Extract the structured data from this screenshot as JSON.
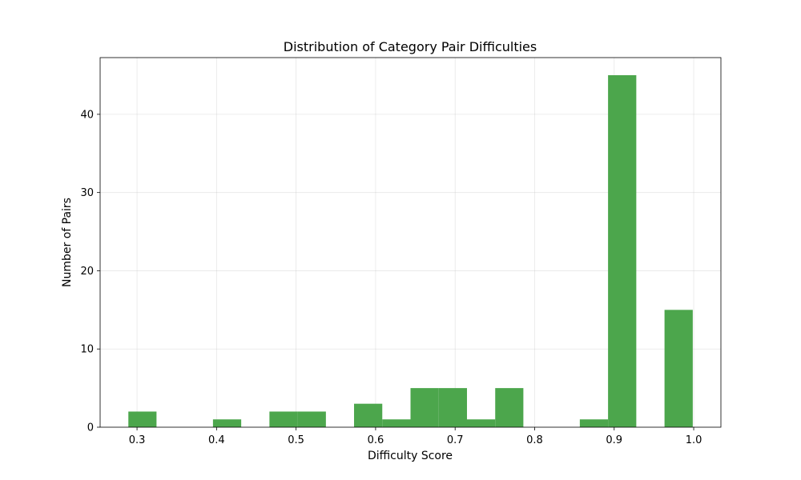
{
  "chart_data": {
    "type": "bar",
    "title": "Distribution of Category Pair Difficulties",
    "xlabel": "Difficulty Score",
    "ylabel": "Number of Pairs",
    "bin_edges": [
      0.2891,
      0.3245,
      0.36,
      0.3955,
      0.431,
      0.4665,
      0.502,
      0.5375,
      0.5729,
      0.6084,
      0.6439,
      0.6794,
      0.7149,
      0.7504,
      0.7858,
      0.8213,
      0.8568,
      0.8923,
      0.9278,
      0.9633,
      0.9988
    ],
    "values": [
      2,
      0,
      0,
      1,
      0,
      2,
      2,
      0,
      3,
      1,
      5,
      5,
      1,
      5,
      0,
      0,
      1,
      45,
      0,
      15
    ],
    "xlim": [
      0.2536,
      1.0342
    ],
    "ylim": [
      0,
      47.25
    ],
    "x_ticks": [
      "0.3",
      "0.4",
      "0.5",
      "0.6",
      "0.7",
      "0.8",
      "0.9",
      "1.0"
    ],
    "y_ticks": [
      "0",
      "10",
      "20",
      "30",
      "40"
    ],
    "grid": true,
    "bar_color": "#4ca64c"
  }
}
